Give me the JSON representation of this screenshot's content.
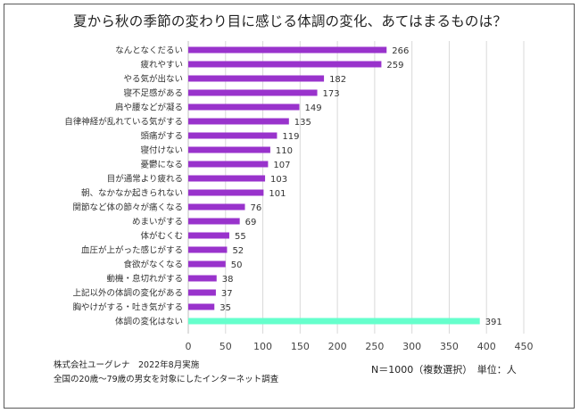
{
  "chart_data": {
    "type": "bar",
    "orientation": "horizontal",
    "title": "夏から秋の季節の変わり目に感じる体調の変化、あてはまるものは？",
    "categories": [
      "なんとなくだるい",
      "疲れやすい",
      "やる気が出ない",
      "寝不足感がある",
      "肩や腰などが凝る",
      "自律神経が乱れている気がする",
      "頭痛がする",
      "寝付けない",
      "憂鬱になる",
      "目が通常より疲れる",
      "朝、なかなか起きられない",
      "関節など体の節々が痛くなる",
      "めまいがする",
      "体がむくむ",
      "血圧が上がった感じがする",
      "食欲がなくなる",
      "動機・息切れがする",
      "上記以外の体調の変化がある",
      "胸やけがする・吐き気がする",
      "体調の変化はない"
    ],
    "values": [
      266,
      259,
      182,
      173,
      149,
      135,
      119,
      110,
      107,
      103,
      101,
      76,
      69,
      55,
      52,
      50,
      38,
      37,
      35,
      391
    ],
    "bar_colors": {
      "default": "#9933cc",
      "highlight": "#66ffcc",
      "highlight_category": "体調の変化はない"
    },
    "xlim": [
      0,
      450
    ],
    "xticks": [
      0,
      50,
      100,
      150,
      200,
      250,
      300,
      350,
      400,
      450
    ],
    "grid": true
  },
  "footer": {
    "source": "株式会社ユーグレナ　2022年8月実施",
    "survey": "全国の20歳～79歳の男女を対象にしたインターネット調査",
    "sample": "N＝1000（複数選択）　単位：人"
  }
}
